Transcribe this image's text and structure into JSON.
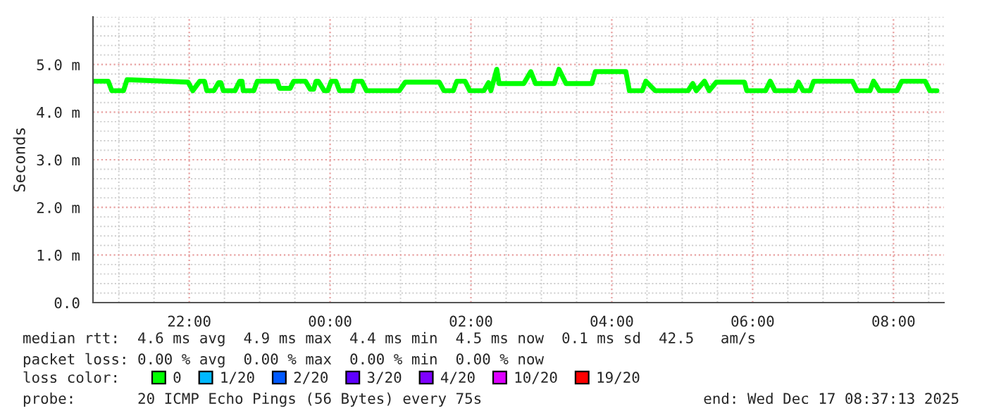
{
  "chart_data": {
    "type": "line",
    "ylabel": "Seconds",
    "x": [
      "2025-12-16T20:39",
      "2025-12-16T20:51",
      "2025-12-16T20:54",
      "2025-12-16T21:04",
      "2025-12-16T21:07",
      "2025-12-16T21:59",
      "2025-12-16T22:03",
      "2025-12-16T22:09",
      "2025-12-16T22:13",
      "2025-12-16T22:15",
      "2025-12-16T22:21",
      "2025-12-16T22:25",
      "2025-12-16T22:27",
      "2025-12-16T22:29",
      "2025-12-16T22:39",
      "2025-12-16T22:43",
      "2025-12-16T22:45",
      "2025-12-16T22:46",
      "2025-12-16T22:55",
      "2025-12-16T22:58",
      "2025-12-16T23:15",
      "2025-12-16T23:17",
      "2025-12-16T23:26",
      "2025-12-16T23:29",
      "2025-12-16T23:39",
      "2025-12-16T23:43",
      "2025-12-16T23:46",
      "2025-12-16T23:48",
      "2025-12-16T23:50",
      "2025-12-16T23:55",
      "2025-12-16T23:58",
      "2025-12-17T00:01",
      "2025-12-17T00:05",
      "2025-12-17T00:08",
      "2025-12-17T00:19",
      "2025-12-17T00:21",
      "2025-12-17T00:27",
      "2025-12-17T00:31",
      "2025-12-17T00:59",
      "2025-12-17T01:04",
      "2025-12-17T01:33",
      "2025-12-17T01:37",
      "2025-12-17T01:45",
      "2025-12-17T01:48",
      "2025-12-17T01:55",
      "2025-12-17T01:59",
      "2025-12-17T02:11",
      "2025-12-17T02:15",
      "2025-12-17T02:17",
      "2025-12-17T02:22",
      "2025-12-17T02:24",
      "2025-12-17T02:45",
      "2025-12-17T02:51",
      "2025-12-17T02:55",
      "2025-12-17T03:11",
      "2025-12-17T03:15",
      "2025-12-17T03:21",
      "2025-12-17T03:43",
      "2025-12-17T03:46",
      "2025-12-17T04:12",
      "2025-12-17T04:15",
      "2025-12-17T04:26",
      "2025-12-17T04:29",
      "2025-12-17T04:37",
      "2025-12-17T05:05",
      "2025-12-17T05:09",
      "2025-12-17T05:12",
      "2025-12-17T05:19",
      "2025-12-17T05:23",
      "2025-12-17T05:29",
      "2025-12-17T05:53",
      "2025-12-17T05:55",
      "2025-12-17T06:11",
      "2025-12-17T06:15",
      "2025-12-17T06:19",
      "2025-12-17T06:36",
      "2025-12-17T06:39",
      "2025-12-17T06:43",
      "2025-12-17T06:49",
      "2025-12-17T06:52",
      "2025-12-17T07:25",
      "2025-12-17T07:29",
      "2025-12-17T07:40",
      "2025-12-17T07:43",
      "2025-12-17T07:48",
      "2025-12-17T08:03",
      "2025-12-17T08:07",
      "2025-12-17T08:27",
      "2025-12-17T08:31",
      "2025-12-17T08:37"
    ],
    "series": [
      {
        "name": "0",
        "color": "#00ff00",
        "values": [
          4.65,
          4.65,
          4.45,
          4.45,
          4.68,
          4.63,
          4.45,
          4.65,
          4.65,
          4.45,
          4.45,
          4.62,
          4.62,
          4.45,
          4.45,
          4.65,
          4.65,
          4.45,
          4.45,
          4.65,
          4.65,
          4.5,
          4.5,
          4.65,
          4.65,
          4.48,
          4.48,
          4.65,
          4.65,
          4.45,
          4.45,
          4.65,
          4.65,
          4.45,
          4.45,
          4.65,
          4.65,
          4.45,
          4.45,
          4.63,
          4.63,
          4.45,
          4.45,
          4.65,
          4.65,
          4.45,
          4.45,
          4.62,
          4.45,
          4.9,
          4.6,
          4.6,
          4.85,
          4.6,
          4.6,
          4.9,
          4.6,
          4.6,
          4.85,
          4.85,
          4.45,
          4.45,
          4.65,
          4.45,
          4.45,
          4.6,
          4.45,
          4.65,
          4.45,
          4.63,
          4.63,
          4.45,
          4.45,
          4.65,
          4.45,
          4.45,
          4.63,
          4.45,
          4.45,
          4.65,
          4.65,
          4.45,
          4.45,
          4.65,
          4.45,
          4.45,
          4.65,
          4.65,
          4.45,
          4.45
        ]
      },
      {
        "name": "1/20",
        "color": "#00b8ff",
        "values": [
          null,
          null,
          null,
          null,
          null,
          null,
          null,
          null,
          null,
          null,
          null,
          null,
          null,
          null,
          null,
          null,
          null,
          null,
          null,
          null,
          null,
          null,
          null,
          null,
          null,
          null,
          null,
          null,
          null,
          null,
          null,
          null,
          null,
          null,
          null,
          null,
          null,
          null,
          null,
          null,
          null,
          null,
          null,
          null,
          null,
          null,
          null,
          null,
          null,
          null,
          null,
          null,
          null,
          null,
          null,
          null,
          null,
          null,
          null,
          null,
          null,
          null,
          null,
          null,
          null,
          null,
          null,
          null,
          null,
          null,
          null,
          null,
          null,
          null,
          null,
          null,
          null,
          null,
          null,
          null,
          null,
          null,
          null,
          null,
          null,
          null,
          null,
          null,
          null,
          null
        ]
      },
      {
        "name": "2/20",
        "color": "#0059ff",
        "values": [
          null,
          null,
          null,
          null,
          null,
          null,
          null,
          null,
          null,
          null,
          null,
          null,
          null,
          null,
          null,
          null,
          null,
          null,
          null,
          null,
          null,
          null,
          null,
          null,
          null,
          null,
          null,
          null,
          null,
          null,
          null,
          null,
          null,
          null,
          null,
          null,
          null,
          null,
          null,
          null,
          null,
          null,
          null,
          null,
          null,
          null,
          null,
          null,
          null,
          null,
          null,
          null,
          null,
          null,
          null,
          null,
          null,
          null,
          null,
          null,
          null,
          null,
          null,
          null,
          null,
          null,
          null,
          null,
          null,
          null,
          null,
          null,
          null,
          null,
          null,
          null,
          null,
          null,
          null,
          null,
          null,
          null,
          null,
          null,
          null,
          null,
          null,
          null,
          null,
          null
        ]
      },
      {
        "name": "3/20",
        "color": "#5e00ff",
        "values": [
          null,
          null,
          null,
          null,
          null,
          null,
          null,
          null,
          null,
          null,
          null,
          null,
          null,
          null,
          null,
          null,
          null,
          null,
          null,
          null,
          null,
          null,
          null,
          null,
          null,
          null,
          null,
          null,
          null,
          null,
          null,
          null,
          null,
          null,
          null,
          null,
          null,
          null,
          null,
          null,
          null,
          null,
          null,
          null,
          null,
          null,
          null,
          null,
          null,
          null,
          null,
          null,
          null,
          null,
          null,
          null,
          null,
          null,
          null,
          null,
          null,
          null,
          null,
          null,
          null,
          null,
          null,
          null,
          null,
          null,
          null,
          null,
          null,
          null,
          null,
          null,
          null,
          null,
          null,
          null,
          null,
          null,
          null,
          null,
          null,
          null,
          null,
          null,
          null,
          null
        ]
      },
      {
        "name": "4/20",
        "color": "#7e00ff",
        "values": [
          null,
          null,
          null,
          null,
          null,
          null,
          null,
          null,
          null,
          null,
          null,
          null,
          null,
          null,
          null,
          null,
          null,
          null,
          null,
          null,
          null,
          null,
          null,
          null,
          null,
          null,
          null,
          null,
          null,
          null,
          null,
          null,
          null,
          null,
          null,
          null,
          null,
          null,
          null,
          null,
          null,
          null,
          null,
          null,
          null,
          null,
          null,
          null,
          null,
          null,
          null,
          null,
          null,
          null,
          null,
          null,
          null,
          null,
          null,
          null,
          null,
          null,
          null,
          null,
          null,
          null,
          null,
          null,
          null,
          null,
          null,
          null,
          null,
          null,
          null,
          null,
          null,
          null,
          null,
          null,
          null,
          null,
          null,
          null,
          null,
          null,
          null,
          null,
          null,
          null
        ]
      },
      {
        "name": "10/20",
        "color": "#dd00ff",
        "values": [
          null,
          null,
          null,
          null,
          null,
          null,
          null,
          null,
          null,
          null,
          null,
          null,
          null,
          null,
          null,
          null,
          null,
          null,
          null,
          null,
          null,
          null,
          null,
          null,
          null,
          null,
          null,
          null,
          null,
          null,
          null,
          null,
          null,
          null,
          null,
          null,
          null,
          null,
          null,
          null,
          null,
          null,
          null,
          null,
          null,
          null,
          null,
          null,
          null,
          null,
          null,
          null,
          null,
          null,
          null,
          null,
          null,
          null,
          null,
          null,
          null,
          null,
          null,
          null,
          null,
          null,
          null,
          null,
          null,
          null,
          null,
          null,
          null,
          null,
          null,
          null,
          null,
          null,
          null,
          null,
          null,
          null,
          null,
          null,
          null,
          null,
          null,
          null,
          null,
          null
        ]
      },
      {
        "name": "19/20",
        "color": "#ff0000",
        "values": [
          null,
          null,
          null,
          null,
          null,
          null,
          null,
          null,
          null,
          null,
          null,
          null,
          null,
          null,
          null,
          null,
          null,
          null,
          null,
          null,
          null,
          null,
          null,
          null,
          null,
          null,
          null,
          null,
          null,
          null,
          null,
          null,
          null,
          null,
          null,
          null,
          null,
          null,
          null,
          null,
          null,
          null,
          null,
          null,
          null,
          null,
          null,
          null,
          null,
          null,
          null,
          null,
          null,
          null,
          null,
          null,
          null,
          null,
          null,
          null,
          null,
          null,
          null,
          null,
          null,
          null,
          null,
          null,
          null,
          null,
          null,
          null,
          null,
          null,
          null,
          null,
          null,
          null,
          null,
          null,
          null,
          null,
          null,
          null,
          null,
          null,
          null,
          null,
          null,
          null
        ]
      }
    ],
    "xlim": [
      "2025-12-16T20:38",
      "2025-12-17T08:43"
    ],
    "xticks": [
      {
        "value": "2025-12-16T22:00",
        "label": "22:00"
      },
      {
        "value": "2025-12-17T00:00",
        "label": "00:00"
      },
      {
        "value": "2025-12-17T02:00",
        "label": "02:00"
      },
      {
        "value": "2025-12-17T04:00",
        "label": "04:00"
      },
      {
        "value": "2025-12-17T06:00",
        "label": "06:00"
      },
      {
        "value": "2025-12-17T08:00",
        "label": "08:00"
      }
    ],
    "ylim": [
      0,
      6
    ],
    "yticks": [
      {
        "value": 0,
        "label": "0.0"
      },
      {
        "value": 1,
        "label": "1.0 m"
      },
      {
        "value": 2,
        "label": "2.0 m"
      },
      {
        "value": 3,
        "label": "3.0 m"
      },
      {
        "value": 4,
        "label": "4.0 m"
      },
      {
        "value": 5,
        "label": "5.0 m"
      }
    ],
    "grid": true,
    "legend": "bottom",
    "annotations": [
      "median rtt:  4.6 ms avg  4.9 ms max  4.4 ms min  4.5 ms now  0.1 ms sd  42.5   am/s",
      "packet loss: 0.00 % avg  0.00 % max  0.00 % min  0.00 % now",
      "loss color:",
      "probe:       20 ICMP Echo Pings (56 Bytes) every 75s",
      "end: Wed Dec 17 08:37:13 2025"
    ]
  }
}
